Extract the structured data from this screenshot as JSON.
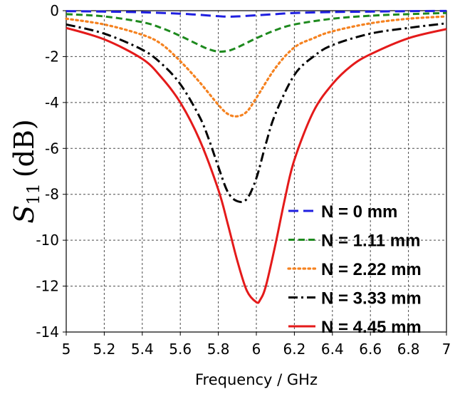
{
  "chart_data": {
    "type": "line",
    "title": "",
    "xlabel": "Frequency / GHz",
    "ylabel_main": "S",
    "ylabel_sub": "11",
    "ylabel_unit": "(dB)",
    "xlim": [
      5,
      7
    ],
    "ylim": [
      -14,
      0
    ],
    "x_ticks": [
      "5",
      "5.2",
      "5.4",
      "5.6",
      "5.8",
      "6",
      "6.2",
      "6.4",
      "6.6",
      "6.8",
      "7"
    ],
    "y_ticks": [
      "0",
      "-2",
      "-4",
      "-6",
      "-8",
      "-10",
      "-12",
      "-14"
    ],
    "grid": true,
    "legend_position": "bottom-right",
    "series": [
      {
        "name": "N = 0 mm",
        "color": "#1f1fe0",
        "dash": "dashed",
        "x": [
          5.0,
          5.2,
          5.4,
          5.6,
          5.7,
          5.8,
          5.85,
          5.9,
          6.0,
          6.1,
          6.2,
          6.4,
          6.6,
          6.8,
          7.0
        ],
        "y": [
          -0.02,
          -0.04,
          -0.07,
          -0.13,
          -0.18,
          -0.24,
          -0.26,
          -0.25,
          -0.2,
          -0.15,
          -0.1,
          -0.06,
          -0.04,
          -0.02,
          -0.01
        ]
      },
      {
        "name": "N = 1.11 mm",
        "color": "#1e8a1e",
        "dash": "dashed-short",
        "x": [
          5.0,
          5.2,
          5.4,
          5.5,
          5.6,
          5.7,
          5.75,
          5.8,
          5.85,
          5.9,
          6.0,
          6.1,
          6.2,
          6.4,
          6.6,
          6.8,
          7.0
        ],
        "y": [
          -0.15,
          -0.25,
          -0.5,
          -0.75,
          -1.1,
          -1.5,
          -1.68,
          -1.78,
          -1.75,
          -1.6,
          -1.2,
          -0.85,
          -0.6,
          -0.35,
          -0.22,
          -0.15,
          -0.1
        ]
      },
      {
        "name": "N = 2.22 mm",
        "color": "#f58220",
        "dash": "dotted",
        "x": [
          5.0,
          5.2,
          5.4,
          5.5,
          5.6,
          5.7,
          5.8,
          5.85,
          5.9,
          5.95,
          6.0,
          6.1,
          6.2,
          6.3,
          6.4,
          6.6,
          6.8,
          7.0
        ],
        "y": [
          -0.35,
          -0.6,
          -1.05,
          -1.45,
          -2.2,
          -3.1,
          -4.1,
          -4.5,
          -4.6,
          -4.4,
          -3.8,
          -2.5,
          -1.6,
          -1.2,
          -0.9,
          -0.55,
          -0.35,
          -0.25
        ]
      },
      {
        "name": "N = 3.33 mm",
        "color": "#000000",
        "dash": "dashdot",
        "x": [
          5.0,
          5.2,
          5.4,
          5.5,
          5.6,
          5.7,
          5.75,
          5.8,
          5.85,
          5.9,
          5.95,
          6.0,
          6.05,
          6.1,
          6.2,
          6.3,
          6.4,
          6.6,
          6.8,
          7.0
        ],
        "y": [
          -0.6,
          -1.0,
          -1.7,
          -2.3,
          -3.2,
          -4.6,
          -5.6,
          -6.8,
          -7.9,
          -8.3,
          -8.2,
          -7.3,
          -5.8,
          -4.5,
          -2.8,
          -2.0,
          -1.5,
          -1.0,
          -0.75,
          -0.55
        ]
      },
      {
        "name": "N = 4.45 mm",
        "color": "#e41a1a",
        "dash": "solid",
        "x": [
          5.0,
          5.2,
          5.4,
          5.5,
          5.6,
          5.7,
          5.8,
          5.85,
          5.9,
          5.95,
          6.0,
          6.02,
          6.05,
          6.1,
          6.15,
          6.2,
          6.3,
          6.4,
          6.5,
          6.6,
          6.8,
          7.0
        ],
        "y": [
          -0.75,
          -1.25,
          -2.1,
          -2.9,
          -4.0,
          -5.6,
          -7.8,
          -9.3,
          -10.9,
          -12.2,
          -12.7,
          -12.6,
          -12.0,
          -10.2,
          -8.2,
          -6.5,
          -4.4,
          -3.2,
          -2.4,
          -1.9,
          -1.2,
          -0.8
        ]
      }
    ]
  }
}
